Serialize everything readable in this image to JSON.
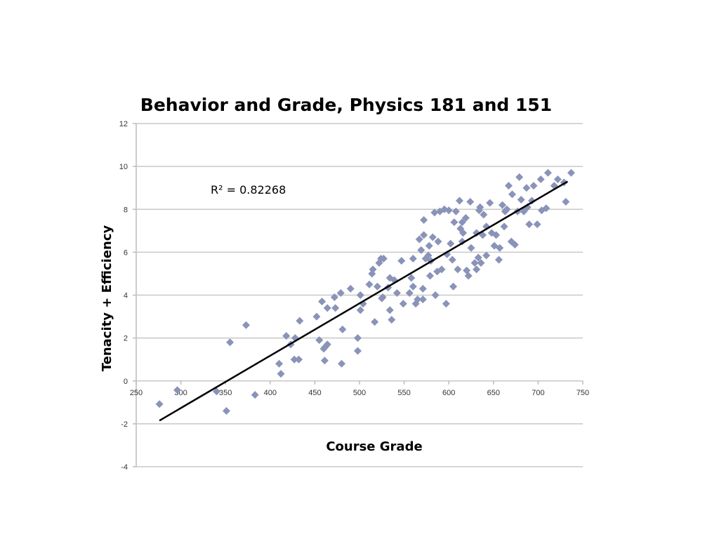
{
  "chart_data": {
    "type": "scatter",
    "title": "Behavior and Grade, Physics 181 and 151",
    "xlabel": "Course Grade",
    "ylabel": "Tenacity + Efficiency",
    "xlim": [
      250,
      750
    ],
    "ylim": [
      -4,
      12
    ],
    "xticks": [
      "250",
      "300",
      "350",
      "400",
      "450",
      "500",
      "550",
      "600",
      "650",
      "700",
      "750"
    ],
    "yticks": [
      "-4",
      "-2",
      "0",
      "2",
      "4",
      "6",
      "8",
      "10",
      "12"
    ],
    "grid": "horizontal",
    "marker_color": "#8a93b8",
    "annotation": "R² = 0.82268",
    "trendline": {
      "x": [
        276,
        733
      ],
      "y": [
        -1.85,
        9.3
      ]
    },
    "points": [
      [
        276,
        -1.08
      ],
      [
        296,
        -0.43
      ],
      [
        340,
        -0.49
      ],
      [
        355,
        1.8
      ],
      [
        351,
        -1.4
      ],
      [
        373,
        2.6
      ],
      [
        383,
        -0.65
      ],
      [
        410,
        0.8
      ],
      [
        412,
        0.33
      ],
      [
        418,
        2.1
      ],
      [
        423,
        1.7
      ],
      [
        428,
        2.0
      ],
      [
        433,
        2.8
      ],
      [
        427,
        1.0
      ],
      [
        432,
        1.0
      ],
      [
        452,
        3.0
      ],
      [
        455,
        1.9
      ],
      [
        458,
        3.7
      ],
      [
        464,
        3.4
      ],
      [
        462,
        1.6
      ],
      [
        464,
        1.7
      ],
      [
        460,
        1.5
      ],
      [
        461,
        0.95
      ],
      [
        473,
        3.4
      ],
      [
        472,
        3.9
      ],
      [
        479,
        4.1
      ],
      [
        481,
        2.4
      ],
      [
        480,
        0.8
      ],
      [
        490,
        4.3
      ],
      [
        498,
        2.0
      ],
      [
        498,
        1.4
      ],
      [
        501,
        4.0
      ],
      [
        501,
        3.3
      ],
      [
        504,
        3.6
      ],
      [
        511,
        4.5
      ],
      [
        514,
        5.0
      ],
      [
        515,
        5.2
      ],
      [
        517,
        2.75
      ],
      [
        522,
        5.5
      ],
      [
        524,
        5.7
      ],
      [
        527,
        5.7
      ],
      [
        525,
        3.85
      ],
      [
        526,
        3.9
      ],
      [
        520,
        4.4
      ],
      [
        532,
        4.35
      ],
      [
        534,
        4.8
      ],
      [
        534,
        3.3
      ],
      [
        536,
        2.85
      ],
      [
        539,
        4.7
      ],
      [
        542,
        4.1
      ],
      [
        547,
        5.6
      ],
      [
        549,
        3.6
      ],
      [
        556,
        4.1
      ],
      [
        558,
        4.8
      ],
      [
        560,
        4.4
      ],
      [
        560,
        5.7
      ],
      [
        563,
        3.6
      ],
      [
        565,
        3.8
      ],
      [
        567,
        6.6
      ],
      [
        571,
        3.8
      ],
      [
        571,
        4.3
      ],
      [
        572,
        7.5
      ],
      [
        572,
        6.8
      ],
      [
        574,
        5.7
      ],
      [
        577,
        5.85
      ],
      [
        578,
        6.3
      ],
      [
        579,
        4.9
      ],
      [
        582,
        6.7
      ],
      [
        585,
        4.0
      ],
      [
        587,
        5.1
      ],
      [
        588,
        6.5
      ],
      [
        590,
        7.9
      ],
      [
        592,
        5.2
      ],
      [
        595,
        8.0
      ],
      [
        597,
        3.6
      ],
      [
        600,
        7.95
      ],
      [
        602,
        6.4
      ],
      [
        604,
        5.65
      ],
      [
        605,
        4.4
      ],
      [
        608,
        7.9
      ],
      [
        610,
        5.2
      ],
      [
        612,
        8.4
      ],
      [
        613,
        7.1
      ],
      [
        615,
        7.4
      ],
      [
        616,
        6.9
      ],
      [
        619,
        7.6
      ],
      [
        620,
        5.15
      ],
      [
        622,
        4.9
      ],
      [
        624,
        8.35
      ],
      [
        625,
        6.2
      ],
      [
        629,
        5.5
      ],
      [
        631,
        6.9
      ],
      [
        631,
        5.2
      ],
      [
        633,
        5.75
      ],
      [
        634,
        7.95
      ],
      [
        635,
        8.1
      ],
      [
        636,
        5.5
      ],
      [
        638,
        6.8
      ],
      [
        639,
        7.75
      ],
      [
        642,
        7.2
      ],
      [
        642,
        5.85
      ],
      [
        646,
        8.3
      ],
      [
        651,
        6.3
      ],
      [
        653,
        6.8
      ],
      [
        656,
        5.65
      ],
      [
        657,
        6.2
      ],
      [
        660,
        8.2
      ],
      [
        662,
        7.2
      ],
      [
        663,
        7.9
      ],
      [
        667,
        9.1
      ],
      [
        670,
        6.5
      ],
      [
        671,
        8.7
      ],
      [
        674,
        6.35
      ],
      [
        677,
        7.9
      ],
      [
        679,
        9.5
      ],
      [
        681,
        8.45
      ],
      [
        684,
        7.9
      ],
      [
        687,
        9.0
      ],
      [
        690,
        7.3
      ],
      [
        693,
        8.4
      ],
      [
        695,
        9.1
      ],
      [
        699,
        7.3
      ],
      [
        703,
        9.4
      ],
      [
        704,
        7.95
      ],
      [
        709,
        8.05
      ],
      [
        711,
        9.7
      ],
      [
        718,
        9.1
      ],
      [
        722,
        9.4
      ],
      [
        729,
        9.25
      ],
      [
        731,
        8.35
      ],
      [
        737,
        9.7
      ],
      [
        606,
        7.4
      ],
      [
        584,
        7.85
      ],
      [
        569,
        6.1
      ],
      [
        580,
        5.6
      ],
      [
        598,
        5.9
      ],
      [
        648,
        6.9
      ],
      [
        665,
        8.0
      ],
      [
        688,
        8.1
      ],
      [
        615,
        6.5
      ]
    ]
  }
}
